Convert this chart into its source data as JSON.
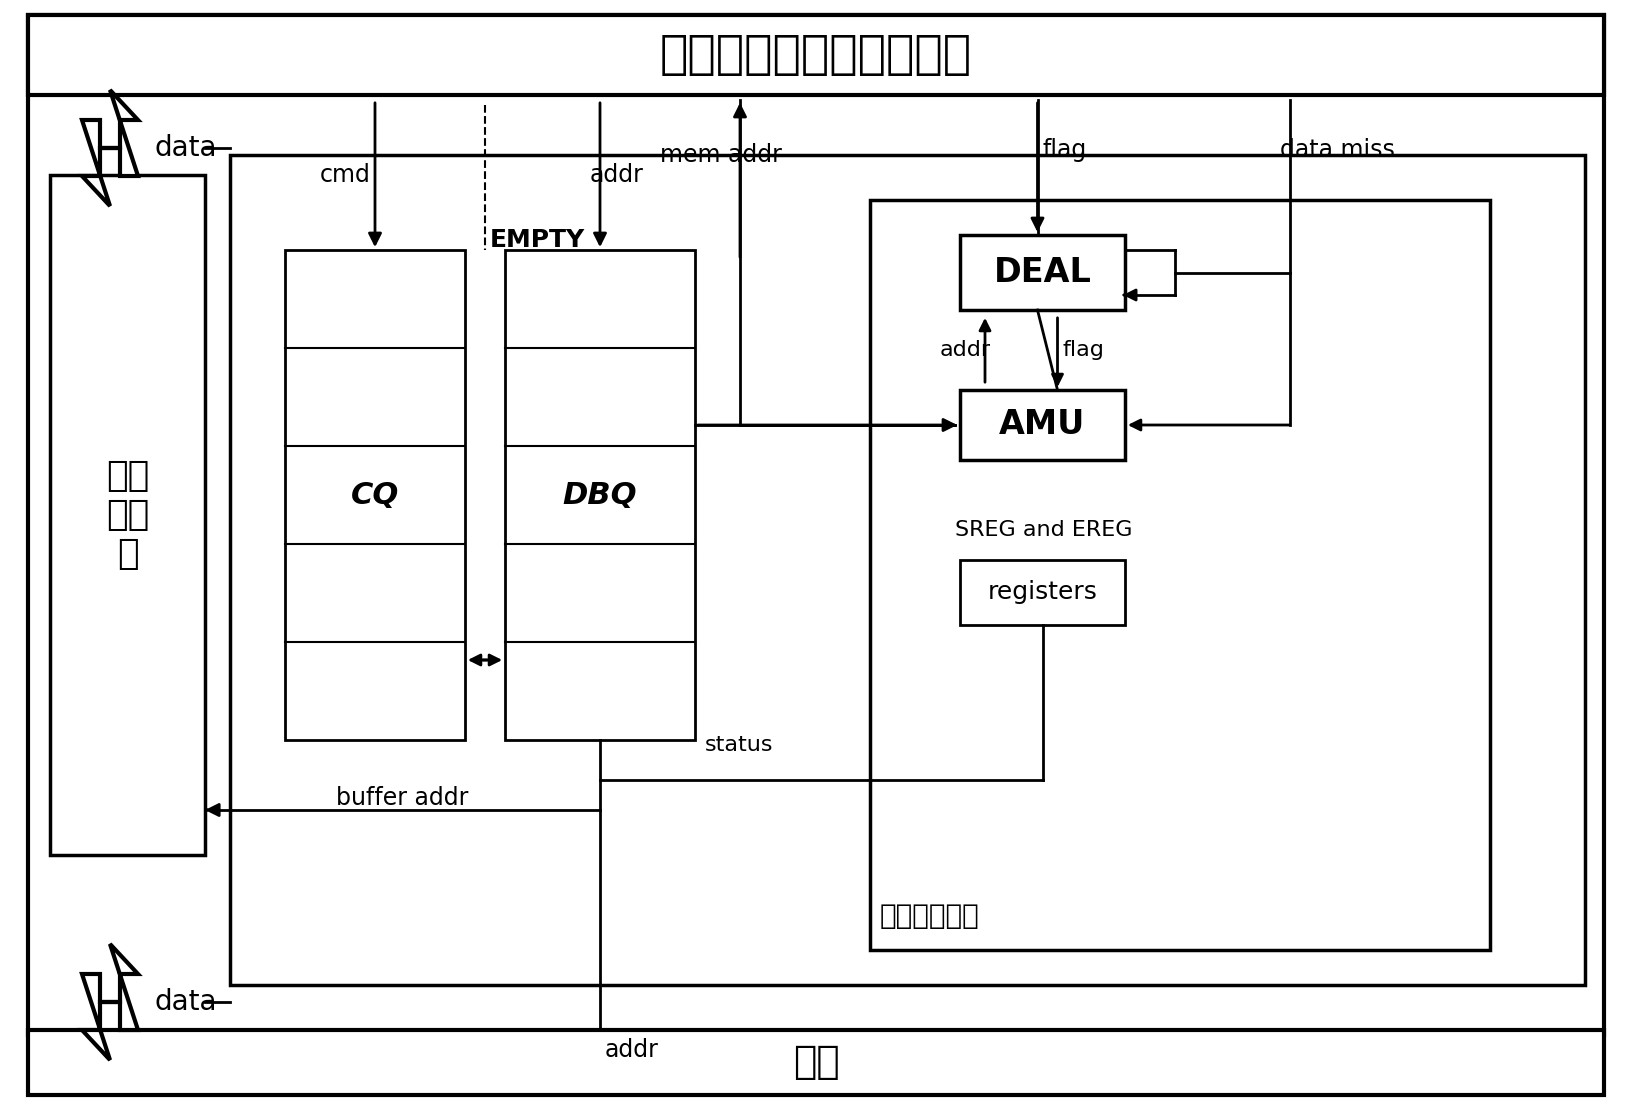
{
  "title": "片上硬件数据库处理器核",
  "bottom_box_label": "内存",
  "left_box_label": "高速\n缓冲\n器",
  "cq_label": "CQ",
  "dbq_label": "DBQ",
  "deal_label": "DEAL",
  "amu_label": "AMU",
  "registers_label": "registers",
  "sreg_ereg_label": "SREG and EREG",
  "buffer_controller_label": "缓冲器控制器",
  "label_data_top": "data",
  "label_data_bottom": "data",
  "label_cmd": "cmd",
  "label_addr": "addr",
  "label_mem_addr": "mem addr",
  "label_flag_top": "flag",
  "label_data_miss": "data miss",
  "label_empty": "EMPTY",
  "label_addr_amu": "addr",
  "label_flag_amu": "flag",
  "label_status": "status",
  "label_buffer_addr": "buffer addr",
  "label_addr_bottom": "addr",
  "bg_color": "#ffffff",
  "line_color": "#000000"
}
